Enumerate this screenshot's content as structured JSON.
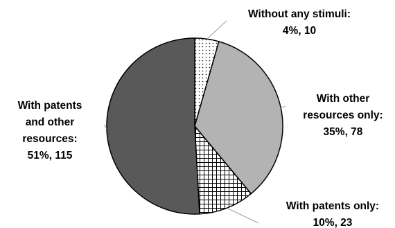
{
  "chart_data": {
    "type": "pie",
    "title": "",
    "slices": [
      {
        "label_lines": [
          "Without any stimuli:",
          "4%, 10"
        ],
        "percent": 4,
        "count": 10,
        "fill": "dots",
        "color": "#ffffff"
      },
      {
        "label_lines": [
          "With other",
          "resources only:",
          "35%, 78"
        ],
        "percent": 35,
        "count": 78,
        "fill": "solid",
        "color": "#b3b3b3"
      },
      {
        "label_lines": [
          "With patents only:",
          "10%, 23"
        ],
        "percent": 10,
        "count": 23,
        "fill": "grid",
        "color": "#ffffff"
      },
      {
        "label_lines": [
          "With patents",
          "and other",
          "resources:",
          "51%, 115"
        ],
        "percent": 51,
        "count": 115,
        "fill": "solid",
        "color": "#595959"
      }
    ],
    "legend": "none",
    "start_angle": "12 o'clock",
    "direction": "clockwise",
    "outline_color": "#000000"
  }
}
